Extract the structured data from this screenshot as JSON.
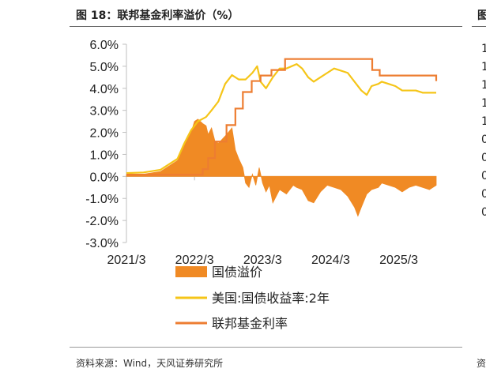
{
  "header": {
    "title": "图 18：联邦基金利率溢价（%）",
    "right_title": "图",
    "right_ticks": [
      "1",
      "1",
      "1",
      "1",
      "1",
      "0",
      "0",
      "0",
      "0",
      "0"
    ]
  },
  "footer": {
    "source": "资料来源：Wind，天风证券研究所",
    "right_source": "资"
  },
  "colors": {
    "premium": "#f08a24",
    "treasury": "#f5c518",
    "fedfunds": "#ed7d31",
    "axis": "#bfbfbf"
  },
  "chart_data": {
    "type": "line",
    "title": "联邦基金利率溢价（%）",
    "x_range": [
      2021.25,
      2025.8
    ],
    "ylim": [
      -3.0,
      6.0
    ],
    "y_ticks": [
      "6.0%",
      "5.0%",
      "4.0%",
      "3.0%",
      "2.0%",
      "1.0%",
      "0.0%",
      "-1.0%",
      "-2.0%",
      "-3.0%"
    ],
    "y_tick_values": [
      6,
      5,
      4,
      3,
      2,
      1,
      0,
      -1,
      -2,
      -3
    ],
    "x_ticks": [
      "2021/3",
      "2022/3",
      "2023/3",
      "2024/3",
      "2025/3"
    ],
    "x_tick_values": [
      2021.25,
      2022.25,
      2023.25,
      2024.25,
      2025.25
    ],
    "legend": [
      "国债溢价",
      "美国:国债收益率:2年",
      "联邦基金利率"
    ],
    "series": [
      {
        "name": "联邦基金利率",
        "kind": "step",
        "x": [
          2021.25,
          2022.25,
          2022.37,
          2022.45,
          2022.55,
          2022.72,
          2022.85,
          2022.96,
          2023.09,
          2023.22,
          2023.38,
          2023.58,
          2024.71,
          2024.86,
          2024.97,
          2025.8
        ],
        "values": [
          0.08,
          0.08,
          0.33,
          0.83,
          1.58,
          2.33,
          3.08,
          3.83,
          4.33,
          4.58,
          4.83,
          5.33,
          5.33,
          4.83,
          4.58,
          4.33
        ]
      },
      {
        "name": "美国:国债收益率:2年",
        "kind": "line",
        "x": [
          2021.25,
          2021.5,
          2021.75,
          2021.9,
          2022.0,
          2022.1,
          2022.2,
          2022.3,
          2022.42,
          2022.5,
          2022.6,
          2022.7,
          2022.8,
          2022.9,
          2023.0,
          2023.1,
          2023.17,
          2023.22,
          2023.3,
          2023.4,
          2023.5,
          2023.6,
          2023.75,
          2023.83,
          2023.92,
          2024.0,
          2024.1,
          2024.2,
          2024.3,
          2024.4,
          2024.5,
          2024.6,
          2024.7,
          2024.78,
          2024.85,
          2024.95,
          2025.0,
          2025.1,
          2025.2,
          2025.3,
          2025.4,
          2025.5,
          2025.6,
          2025.7,
          2025.8
        ],
        "values": [
          0.15,
          0.18,
          0.3,
          0.6,
          0.8,
          1.5,
          2.1,
          2.5,
          2.7,
          3.0,
          3.4,
          4.2,
          4.6,
          4.4,
          4.4,
          4.7,
          5.0,
          4.3,
          4.0,
          4.5,
          4.9,
          4.9,
          5.1,
          4.9,
          4.5,
          4.3,
          4.5,
          4.7,
          4.9,
          4.8,
          4.7,
          4.3,
          3.9,
          3.7,
          4.1,
          4.2,
          4.3,
          4.2,
          4.1,
          3.9,
          3.9,
          3.9,
          3.8,
          3.8,
          3.8
        ]
      },
      {
        "name": "国债溢价",
        "kind": "area",
        "x": [
          2021.25,
          2021.5,
          2021.75,
          2021.9,
          2022.0,
          2022.1,
          2022.2,
          2022.25,
          2022.3,
          2022.37,
          2022.42,
          2022.45,
          2022.5,
          2022.55,
          2022.6,
          2022.72,
          2022.8,
          2022.85,
          2022.9,
          2022.96,
          2023.0,
          2023.05,
          2023.1,
          2023.15,
          2023.2,
          2023.25,
          2023.3,
          2023.35,
          2023.4,
          2023.5,
          2023.6,
          2023.7,
          2023.75,
          2023.83,
          2023.92,
          2024.0,
          2024.1,
          2024.2,
          2024.3,
          2024.4,
          2024.5,
          2024.6,
          2024.65,
          2024.7,
          2024.78,
          2024.85,
          2024.95,
          2025.0,
          2025.1,
          2025.2,
          2025.3,
          2025.4,
          2025.5,
          2025.6,
          2025.7,
          2025.8
        ],
        "values": [
          0.07,
          0.1,
          0.22,
          0.52,
          0.72,
          1.4,
          2.0,
          2.5,
          2.6,
          2.4,
          2.3,
          1.9,
          2.2,
          1.6,
          1.5,
          1.9,
          2.2,
          1.2,
          0.8,
          0.4,
          -0.3,
          -0.5,
          0.1,
          -0.4,
          0.4,
          -0.3,
          -0.7,
          -0.4,
          -1.2,
          -0.6,
          -0.8,
          -0.4,
          -0.5,
          -0.6,
          -1.1,
          -1.2,
          -0.7,
          -0.4,
          -0.5,
          -0.6,
          -0.9,
          -1.4,
          -1.8,
          -1.4,
          -0.8,
          -0.6,
          -0.5,
          -0.3,
          -0.4,
          -0.5,
          -0.7,
          -0.5,
          -0.4,
          -0.5,
          -0.6,
          -0.4
        ]
      }
    ]
  }
}
